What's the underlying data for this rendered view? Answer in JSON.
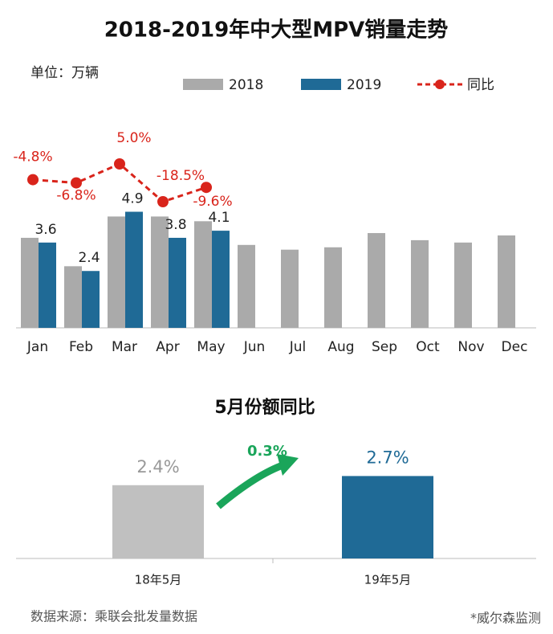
{
  "chart_data": [
    {
      "type": "bar_line",
      "title": "2018-2019年中大型MPV销量走势",
      "unit_label": "单位：万辆",
      "categories": [
        "Jan",
        "Feb",
        "Mar",
        "Apr",
        "May",
        "Jun",
        "Jul",
        "Aug",
        "Sep",
        "Oct",
        "Nov",
        "Dec"
      ],
      "series": [
        {
          "name": "2018",
          "color": "#aaaaaa",
          "type": "bar",
          "values": [
            3.8,
            2.6,
            4.7,
            4.7,
            4.5,
            3.5,
            3.3,
            3.4,
            4.0,
            3.7,
            3.6,
            3.9
          ]
        },
        {
          "name": "2019",
          "color": "#1f6a96",
          "type": "bar",
          "values": [
            3.6,
            2.4,
            4.9,
            3.8,
            4.1,
            null,
            null,
            null,
            null,
            null,
            null,
            null
          ]
        },
        {
          "name": "同比",
          "color": "#d9241b",
          "type": "line",
          "axis": "y2",
          "values": [
            -4.8,
            -6.8,
            5.0,
            -18.5,
            -9.6,
            null,
            null,
            null,
            null,
            null,
            null,
            null
          ],
          "value_labels": [
            "-4.8%",
            "-6.8%",
            "5.0%",
            "-18.5%",
            "-9.6%",
            null,
            null,
            null,
            null,
            null,
            null,
            null
          ]
        }
      ],
      "ylim": [
        0,
        8.75
      ],
      "y2lim": [
        -97,
        32
      ]
    },
    {
      "type": "bar",
      "title": "5月份额同比",
      "categories": [
        "18年5月",
        "19年5月"
      ],
      "values": [
        2.4,
        2.7
      ],
      "value_labels": [
        "2.4%",
        "2.7%"
      ],
      "colors": [
        "#c0c0c0",
        "#1f6a96"
      ],
      "ylim": [
        0,
        3
      ],
      "annotation": "0.3%"
    }
  ],
  "footer": {
    "source": "数据来源：乘联会批发量数据",
    "note": "*威尔森监测"
  }
}
